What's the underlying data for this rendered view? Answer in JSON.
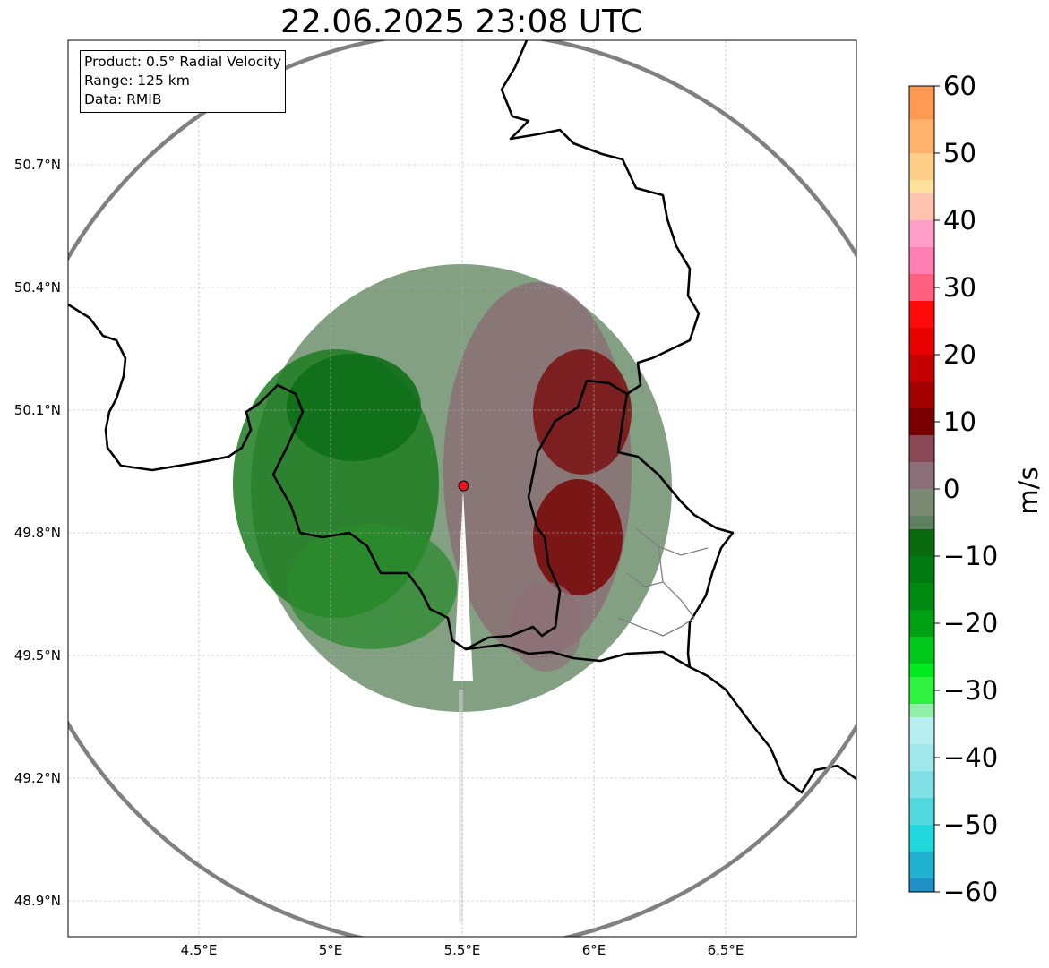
{
  "title": "22.06.2025 23:08 UTC",
  "info": {
    "product": "Product: 0.5° Radial Velocity",
    "range": "Range: 125 km",
    "source": "Data: RMIB"
  },
  "map": {
    "lon_range": [
      4.0,
      7.0
    ],
    "lat_range": [
      48.8,
      51.0
    ],
    "x_ticks": [
      {
        "value": 4.5,
        "label": "4.5°E"
      },
      {
        "value": 5.0,
        "label": "5°E"
      },
      {
        "value": 5.5,
        "label": "5.5°E"
      },
      {
        "value": 6.0,
        "label": "6°E"
      },
      {
        "value": 6.5,
        "label": "6.5°E"
      }
    ],
    "y_ticks": [
      {
        "value": 50.7,
        "label": "50.7°N"
      },
      {
        "value": 50.4,
        "label": "50.4°N"
      },
      {
        "value": 50.1,
        "label": "50.1°N"
      },
      {
        "value": 49.8,
        "label": "49.8°N"
      },
      {
        "value": 49.5,
        "label": "49.5°N"
      },
      {
        "value": 49.2,
        "label": "49.2°N"
      },
      {
        "value": 48.9,
        "label": "48.9°N"
      }
    ],
    "radar_site": {
      "lon": 5.505,
      "lat": 49.915,
      "color": "#e8141c"
    },
    "grid": true
  },
  "colorbar": {
    "unit": "m/s",
    "min": -60,
    "max": 60,
    "ticks": [
      60,
      50,
      40,
      30,
      20,
      10,
      0,
      -10,
      -20,
      -30,
      -40,
      -50,
      -60
    ],
    "tick_labels": [
      "60",
      "50",
      "40",
      "30",
      "20",
      "10",
      "0",
      "−10",
      "−20",
      "−30",
      "−40",
      "−50",
      "−60"
    ]
  }
}
